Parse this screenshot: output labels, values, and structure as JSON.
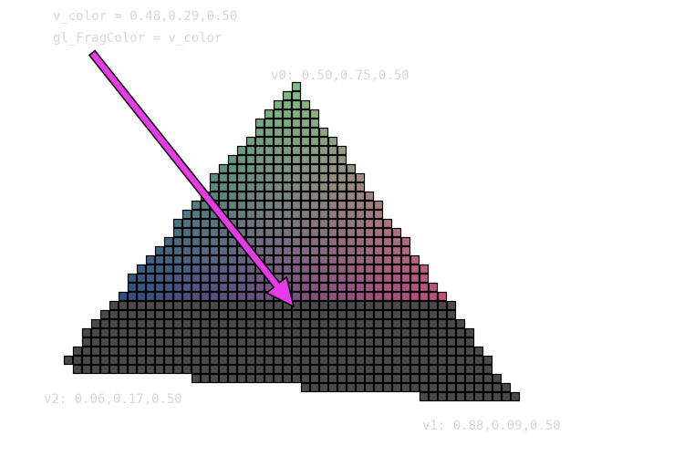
{
  "code": {
    "v_color_line": "v_color = 0.48,0.29,0.50",
    "frag_line": "gl_FragColor = v_color"
  },
  "vertices": {
    "v0": {
      "label": "v0: 0.50,0.75,0.50",
      "color": [
        0.5,
        0.75,
        0.5
      ]
    },
    "v1": {
      "label": "v1: 0.88,0.09,0.50",
      "color": [
        0.88,
        0.09,
        0.5
      ]
    },
    "v2": {
      "label": "v2: 0.06,0.17,0.50",
      "color": [
        0.06,
        0.17,
        0.5
      ]
    }
  },
  "current_color": [
    0.48,
    0.29,
    0.5
  ],
  "unrasterized_fill": "#4a4a4a",
  "grid_line_color": "#000000",
  "arrow_color": "#e83ae8"
}
